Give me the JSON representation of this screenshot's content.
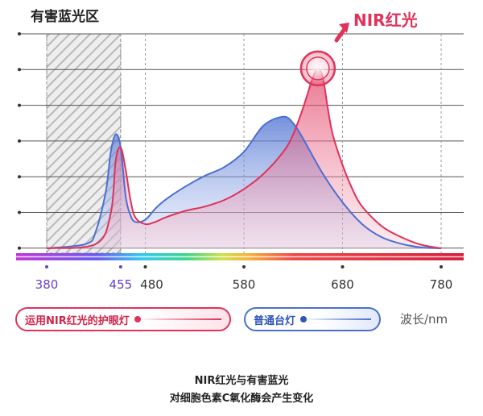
{
  "chart_data": {
    "type": "area",
    "title": "有害蓝光区",
    "callout": "NIR红光",
    "unit_label": "波长/nm",
    "xlim": [
      340,
      800
    ],
    "x_ticks": [
      "380",
      "455",
      "480",
      "580",
      "680",
      "780"
    ],
    "highlight_band": {
      "label": "有害蓝光区",
      "range": [
        380,
        455
      ]
    },
    "series": [
      {
        "name": "运用NIR红光的护眼灯",
        "color": "#e0325a",
        "x": [
          380,
          430,
          445,
          450,
          455,
          460,
          465,
          470,
          480,
          490,
          500,
          520,
          540,
          560,
          580,
          600,
          620,
          630,
          640,
          650,
          655,
          660,
          665,
          670,
          680,
          690,
          700,
          720,
          740,
          760,
          780
        ],
        "y": [
          0,
          0.1,
          0.8,
          2.0,
          2.3,
          1.8,
          1.1,
          0.7,
          0.55,
          0.6,
          0.7,
          0.85,
          0.95,
          1.1,
          1.35,
          1.7,
          2.2,
          2.6,
          3.2,
          3.9,
          4.1,
          3.9,
          3.2,
          2.6,
          1.9,
          1.35,
          0.95,
          0.5,
          0.25,
          0.08,
          0
        ]
      },
      {
        "name": "普通台灯",
        "color": "#4b6fd1",
        "x": [
          380,
          420,
          430,
          440,
          445,
          450,
          455,
          460,
          465,
          470,
          480,
          490,
          500,
          520,
          540,
          560,
          580,
          600,
          620,
          630,
          640,
          660,
          680,
          700,
          720,
          740,
          760,
          780
        ],
        "y": [
          0,
          0.1,
          0.4,
          1.3,
          2.2,
          2.6,
          2.3,
          1.2,
          0.75,
          0.6,
          0.65,
          0.9,
          1.1,
          1.4,
          1.65,
          1.85,
          2.2,
          2.8,
          3.0,
          2.85,
          2.5,
          1.7,
          1.05,
          0.55,
          0.25,
          0.1,
          0.02,
          0
        ]
      }
    ]
  },
  "legend": {
    "red_label": "运用NIR红光的护眼灯",
    "blue_label": "普通台灯",
    "unit": "波长/nm"
  },
  "caption": {
    "line1": "NIR红光与有害蓝光",
    "line2": "对细胞色素C氧化酶会产生变化"
  }
}
